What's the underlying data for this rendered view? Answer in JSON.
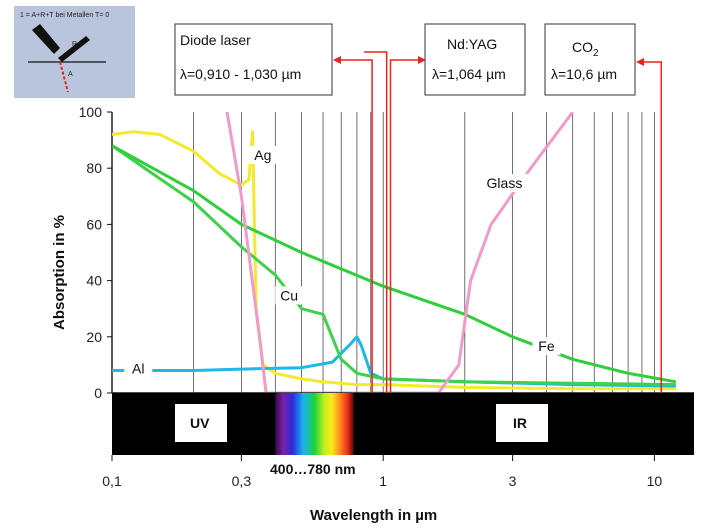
{
  "chart_data": {
    "type": "line",
    "title": "",
    "xlabel": "Wavelength in µm",
    "ylabel": "Absorption in %",
    "xscale": "log",
    "xlim": [
      0.1,
      14
    ],
    "ylim": [
      0,
      100
    ],
    "x_ticks": [
      {
        "value": 0.1,
        "label": "0,1"
      },
      {
        "value": 0.3,
        "label": "0,3"
      },
      {
        "value": 1,
        "label": "1"
      },
      {
        "value": 3,
        "label": "3"
      },
      {
        "value": 10,
        "label": "10"
      }
    ],
    "y_ticks": [
      0,
      20,
      40,
      60,
      80,
      100
    ],
    "grid": "vertical lines at log decades",
    "series": [
      {
        "name": "Ag",
        "color": "#f2ea2a",
        "points": [
          [
            0.1,
            92
          ],
          [
            0.12,
            93
          ],
          [
            0.15,
            92
          ],
          [
            0.2,
            86
          ],
          [
            0.25,
            78
          ],
          [
            0.3,
            74
          ],
          [
            0.32,
            76
          ],
          [
            0.33,
            93
          ],
          [
            0.34,
            30
          ],
          [
            0.36,
            10
          ],
          [
            0.4,
            7
          ],
          [
            0.5,
            5
          ],
          [
            0.6,
            4
          ],
          [
            0.8,
            3
          ],
          [
            1,
            3
          ],
          [
            2,
            2
          ],
          [
            5,
            1.5
          ],
          [
            12,
            1.5
          ]
        ]
      },
      {
        "name": "Al",
        "color": "#1eb7ea",
        "points": [
          [
            0.1,
            8
          ],
          [
            0.2,
            8
          ],
          [
            0.3,
            8.5
          ],
          [
            0.5,
            9
          ],
          [
            0.65,
            11
          ],
          [
            0.75,
            17
          ],
          [
            0.8,
            20
          ],
          [
            0.83,
            17
          ],
          [
            0.9,
            7
          ],
          [
            1,
            5
          ],
          [
            2,
            4
          ],
          [
            5,
            3
          ],
          [
            12,
            2.5
          ]
        ]
      },
      {
        "name": "Cu",
        "color": "#3dd24a",
        "points": [
          [
            0.1,
            88
          ],
          [
            0.2,
            68
          ],
          [
            0.3,
            52
          ],
          [
            0.4,
            42
          ],
          [
            0.5,
            30
          ],
          [
            0.6,
            28
          ],
          [
            0.7,
            12
          ],
          [
            0.8,
            7
          ],
          [
            1,
            5
          ],
          [
            2,
            4
          ],
          [
            5,
            3.5
          ],
          [
            12,
            3
          ]
        ]
      },
      {
        "name": "Fe",
        "color": "#2ecf3a",
        "points": [
          [
            0.1,
            88
          ],
          [
            0.2,
            72
          ],
          [
            0.3,
            60
          ],
          [
            0.5,
            50
          ],
          [
            1,
            38
          ],
          [
            2,
            28
          ],
          [
            3,
            20
          ],
          [
            5,
            12
          ],
          [
            8,
            7
          ],
          [
            12,
            4
          ]
        ]
      },
      {
        "name": "Glass",
        "color": "#f29ac8",
        "points": [
          [
            0.25,
            115
          ],
          [
            0.3,
            70
          ],
          [
            0.35,
            20
          ],
          [
            0.37,
            0
          ],
          [
            1,
            0
          ],
          [
            1.6,
            0
          ],
          [
            1.9,
            10
          ],
          [
            2.1,
            40
          ],
          [
            2.5,
            60
          ],
          [
            3.5,
            80
          ],
          [
            5,
            100
          ]
        ]
      }
    ],
    "spectral_bands": [
      {
        "label": "UV",
        "x": 0.22
      },
      {
        "label": "400…780 nm",
        "x_range": [
          0.4,
          0.78
        ]
      },
      {
        "label": "IR",
        "x": 4
      }
    ],
    "laser_boxes": [
      {
        "label": "Diode laser",
        "detail": "λ=0,910 - 1,030 µm",
        "x_range": [
          0.91,
          1.03
        ]
      },
      {
        "label": "Nd:YAG",
        "detail": "λ=1,064 µm",
        "x": 1.064
      },
      {
        "label": "CO",
        "sub": "2",
        "detail": "λ=10,6 µm",
        "x": 10.6
      }
    ],
    "inset": {
      "caption": "1 = A+R+T  bei Metallen  T= 0",
      "label_r": "R",
      "label_a": "A"
    }
  }
}
